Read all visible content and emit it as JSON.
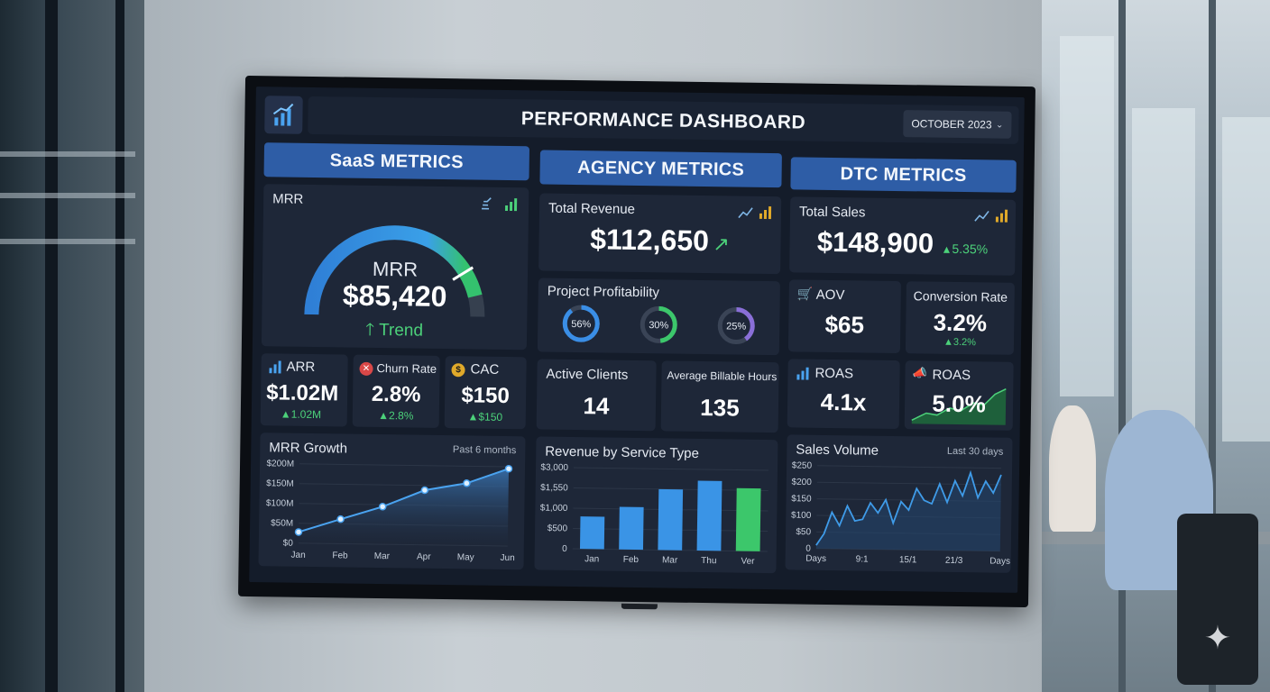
{
  "header": {
    "title": "PERFORMANCE DASHBOARD",
    "period_select": "OCTOBER 2023"
  },
  "sections": {
    "saas": "SaaS METRICS",
    "agency": "AGENCY METRICS",
    "dtc": "DTC METRICS"
  },
  "saas": {
    "mrr": {
      "label": "MRR",
      "gauge_label": "MRR",
      "value": "$85,420",
      "trend": "Trend",
      "gauge_fraction": 0.82
    },
    "arr": {
      "label": "ARR",
      "value": "$1.02M",
      "delta": "1.02M"
    },
    "churn": {
      "label": "Churn Rate",
      "value": "2.8%",
      "delta": "2.8%"
    },
    "cac": {
      "label": "CAC",
      "value": "$150",
      "delta": "$150"
    }
  },
  "agency": {
    "total_revenue": {
      "label": "Total Revenue",
      "value": "$112,650"
    },
    "profitability": {
      "label": "Project Profitability",
      "rings": [
        {
          "value": 56,
          "text": "56%",
          "color": "#3a8ee6"
        },
        {
          "value": 30,
          "text": "30%",
          "color": "#3cc76b"
        },
        {
          "value": 25,
          "text": "25%",
          "color": "#8a6fd8"
        }
      ]
    },
    "active_clients": {
      "label": "Active Clients",
      "value": "14"
    },
    "billable_hours": {
      "label": "Average Billable Hours",
      "value": "135"
    }
  },
  "dtc": {
    "total_sales": {
      "label": "Total Sales",
      "value": "$148,900",
      "delta": "5.35%"
    },
    "aov": {
      "label": "AOV",
      "value": "$65"
    },
    "conversion": {
      "label": "Conversion Rate",
      "value": "3.2%",
      "delta": "3.2%"
    },
    "roas": {
      "label": "ROAS",
      "value": "4.1x"
    },
    "roas2": {
      "label": "ROAS",
      "value": "5.0%"
    }
  },
  "chart_data": [
    {
      "type": "area",
      "title": "MRR Growth",
      "subtitle": "Past 6 months",
      "categories": [
        "Jan",
        "Feb",
        "Mar",
        "Apr",
        "May",
        "Jun"
      ],
      "values": [
        28,
        62,
        95,
        138,
        157,
        195
      ],
      "yticks": [
        "$200M",
        "$150M",
        "$100M",
        "$50M",
        "$0"
      ],
      "ylim": [
        0,
        200
      ],
      "color": "#4aa3f0"
    },
    {
      "type": "bar",
      "title": "Revenue by Service Type",
      "categories": [
        "Jan",
        "Feb",
        "Mar",
        "Thu",
        "Ver"
      ],
      "values": [
        800,
        1050,
        1500,
        1720,
        1550
      ],
      "yticks": [
        "$3,000",
        "$1,550",
        "$1,000",
        "$500",
        "0"
      ],
      "colors": [
        "#3a94e6",
        "#3a94e6",
        "#3a94e6",
        "#3a94e6",
        "#3cc76b"
      ]
    },
    {
      "type": "line",
      "title": "Sales Volume",
      "subtitle": "Last 30 days",
      "xticks": [
        "Days",
        "9:1",
        "15/1",
        "21/3",
        "Days"
      ],
      "values": [
        10,
        45,
        110,
        70,
        130,
        85,
        90,
        140,
        110,
        150,
        80,
        145,
        120,
        185,
        150,
        140,
        200,
        145,
        210,
        165,
        235,
        160,
        210,
        175,
        230
      ],
      "yticks": [
        "$250",
        "$200",
        "$150",
        "$100",
        "$50",
        "0"
      ],
      "ylim": [
        0,
        250
      ],
      "color": "#3f9be8"
    }
  ]
}
